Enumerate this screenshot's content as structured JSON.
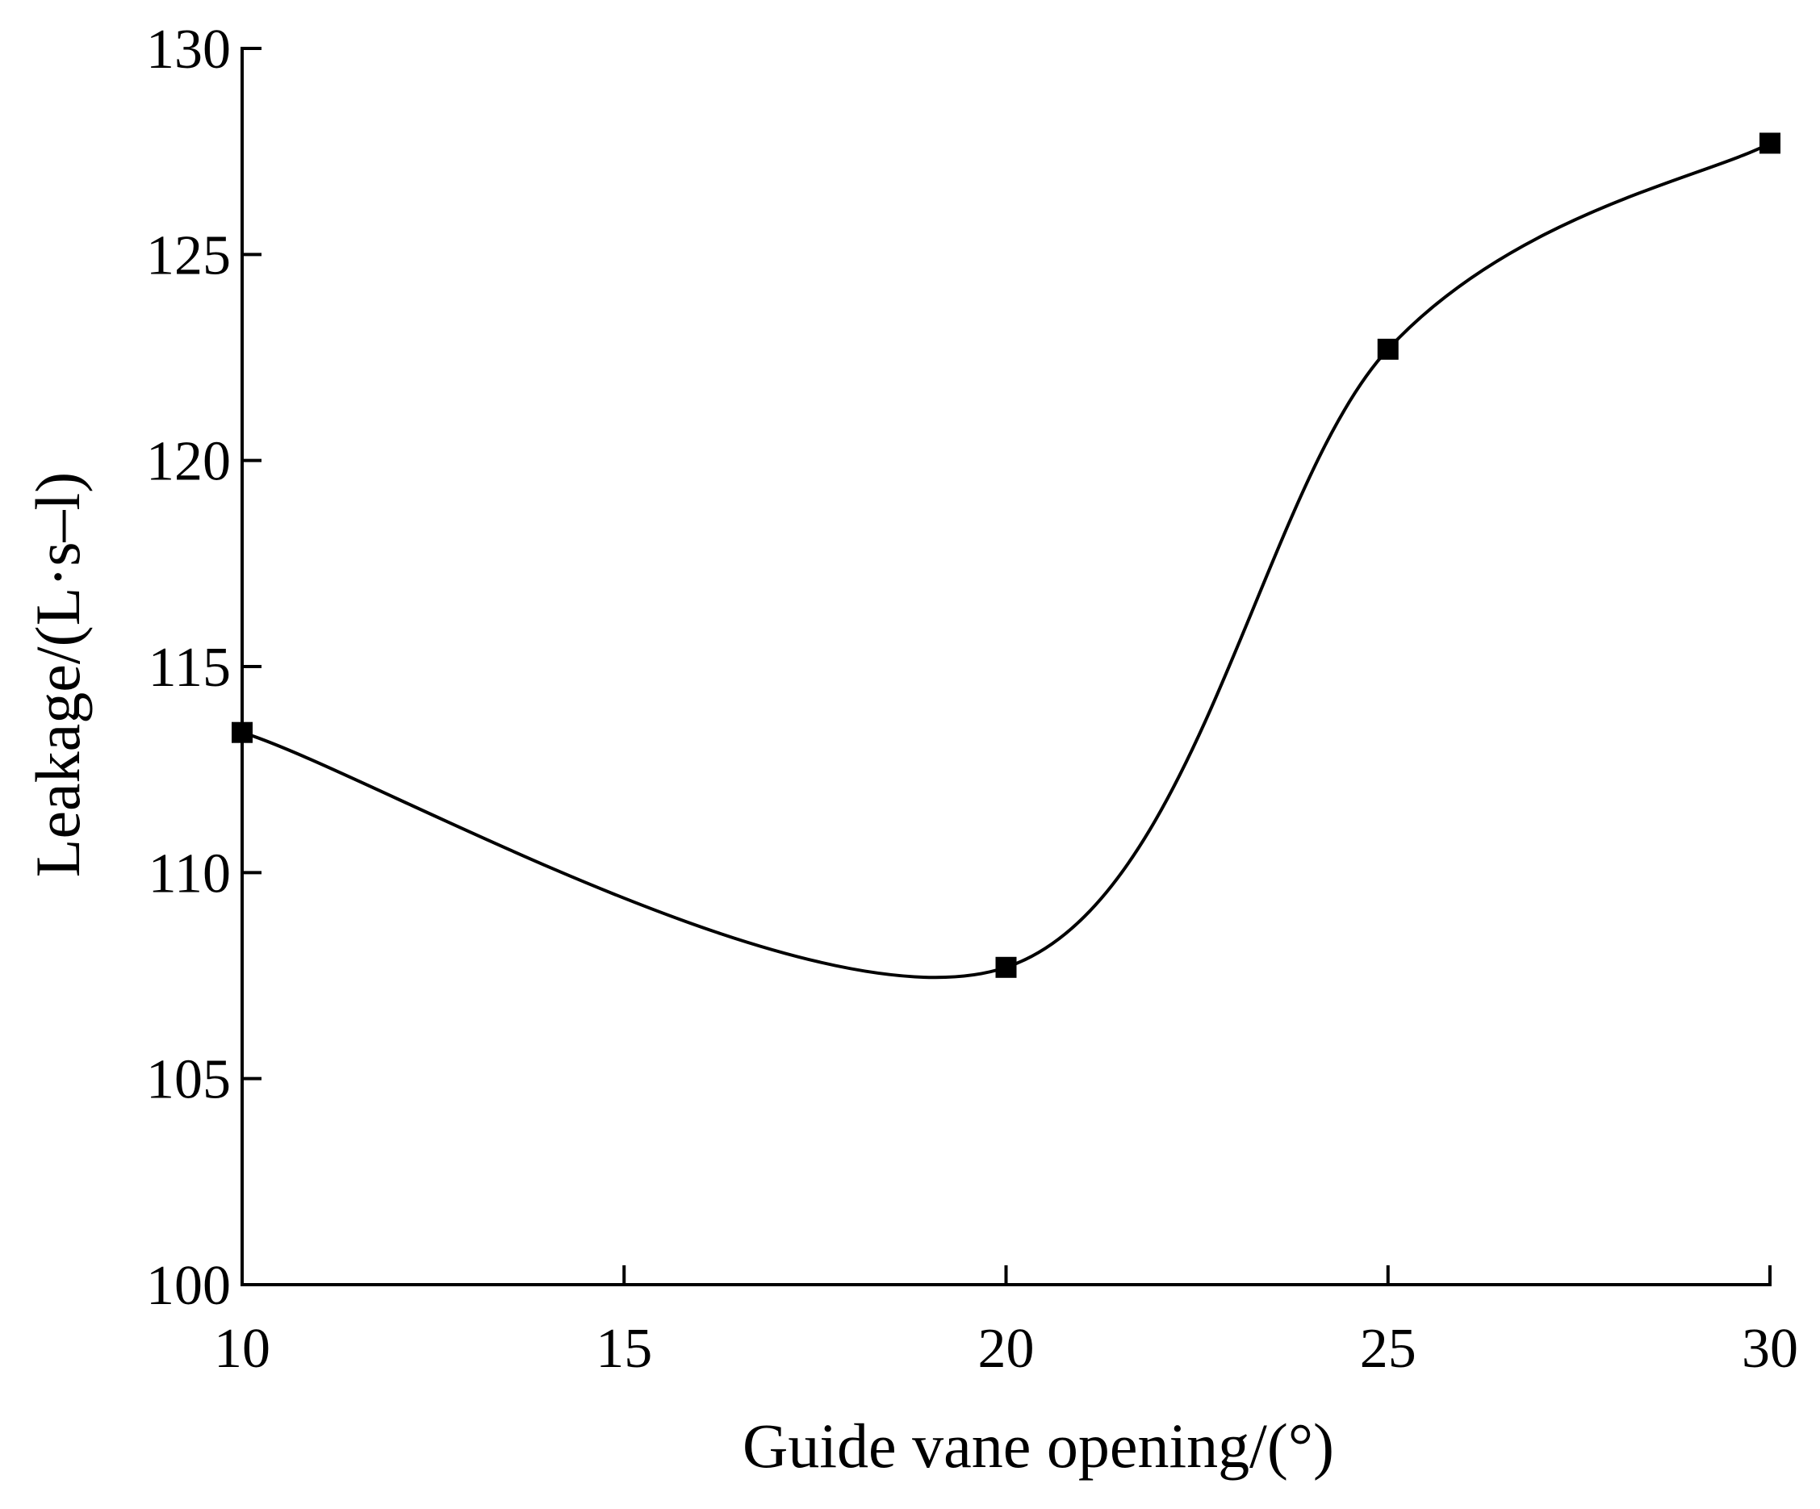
{
  "chart_data": {
    "type": "line",
    "title": "",
    "xlabel": "Guide vane opening/(°)",
    "ylabel": "Leakage/(L·s–l)",
    "xlim": [
      10,
      30
    ],
    "ylim": [
      100,
      130
    ],
    "x_ticks": [
      "10",
      "15",
      "20",
      "25",
      "30"
    ],
    "y_ticks": [
      "100",
      "105",
      "110",
      "115",
      "120",
      "125",
      "130"
    ],
    "grid": false,
    "legend": "none",
    "smooth": true,
    "series": [
      {
        "x": [
          10,
          20,
          25,
          30
        ],
        "y": [
          113.4,
          107.7,
          122.7,
          127.7
        ],
        "marker": "square",
        "color": "#000000"
      }
    ]
  }
}
